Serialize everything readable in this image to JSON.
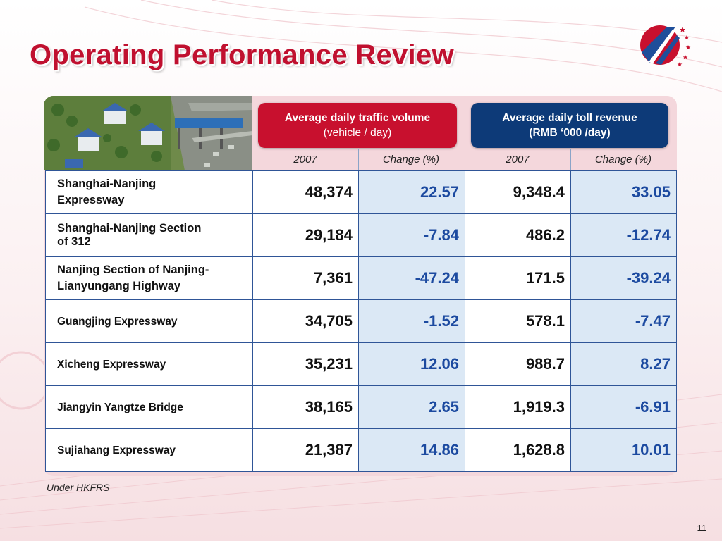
{
  "title": "Operating Performance Review",
  "header": {
    "traffic_title": "Average daily traffic volume",
    "traffic_unit": "(vehicle / day)",
    "revenue_title": "Average daily toll revenue",
    "revenue_unit": "(RMB ‘000 /day)"
  },
  "subheaders": {
    "traffic_year": "2007",
    "traffic_change": "Change (%)",
    "revenue_year": "2007",
    "revenue_change": "Change (%)"
  },
  "rows": [
    {
      "name": [
        "Shanghai-Nanjing",
        "Expressway"
      ],
      "traffic": "48,374",
      "traffic_change": "22.57",
      "revenue": "9,348.4",
      "revenue_change": "33.05"
    },
    {
      "name": [
        "Shanghai-Nanjing Section",
        "of 312"
      ],
      "traffic": "29,184",
      "traffic_change": "-7.84",
      "revenue": "486.2",
      "revenue_change": "-12.74"
    },
    {
      "name": [
        "Nanjing Section of Nanjing-",
        "Lianyungang Highway"
      ],
      "traffic": "7,361",
      "traffic_change": "-47.24",
      "revenue": "171.5",
      "revenue_change": "-39.24"
    },
    {
      "name": [
        "Guangjing Expressway"
      ],
      "traffic": "34,705",
      "traffic_change": "-1.52",
      "revenue": "578.1",
      "revenue_change": "-7.47"
    },
    {
      "name": [
        "Xicheng Expressway"
      ],
      "traffic": "35,231",
      "traffic_change": "12.06",
      "revenue": "988.7",
      "revenue_change": "8.27"
    },
    {
      "name": [
        "Jiangyin Yangtze Bridge"
      ],
      "traffic": "38,165",
      "traffic_change": "2.65",
      "revenue": "1,919.3",
      "revenue_change": "-6.91"
    },
    {
      "name": [
        "Sujiahang Expressway"
      ],
      "traffic": "21,387",
      "traffic_change": "14.86",
      "revenue": "1,628.8",
      "revenue_change": "10.01"
    }
  ],
  "footnote": "Under HKFRS",
  "page_number": "11",
  "colors": {
    "title_red": "#c0102f",
    "header_red": "#c8102e",
    "header_blue": "#0d3a78",
    "change_text_blue": "#1c4aa0",
    "change_cell_bg": "#dbe8f5",
    "panel_pink": "#f4d7dc"
  },
  "icons": {
    "logo": "company-logo-road-stars-icon",
    "photo": "toll-station-aerial-photo"
  }
}
